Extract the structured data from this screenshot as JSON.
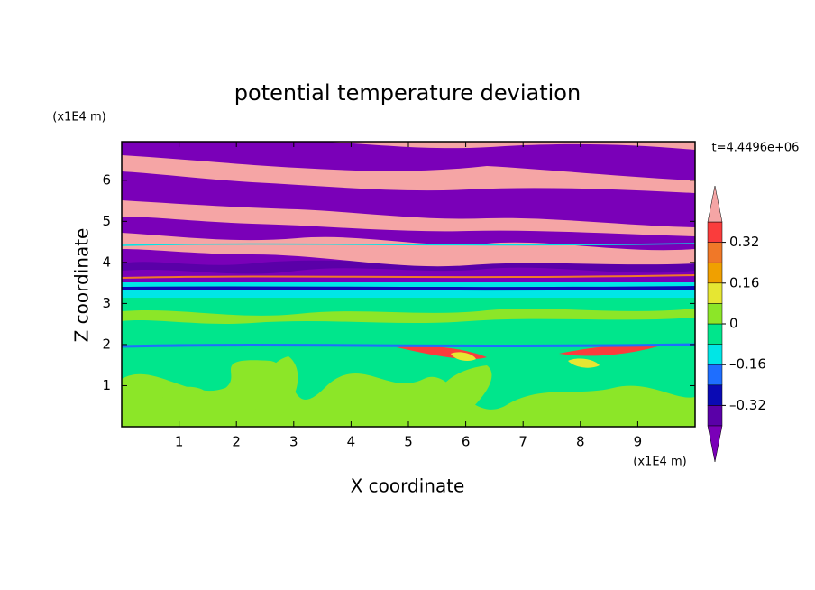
{
  "chart_data": {
    "type": "contour",
    "title": "potential temperature deviation",
    "xlabel": "X coordinate",
    "ylabel": "Z coordinate",
    "x_unit": "(x1E4 m)",
    "y_unit": "(x1E4 m)",
    "annotation": "t=4.4496e+06",
    "xlim": [
      0,
      10
    ],
    "ylim": [
      0,
      6.94
    ],
    "xticks": [
      1,
      2,
      3,
      4,
      5,
      6,
      7,
      8,
      9
    ],
    "yticks": [
      1,
      2,
      3,
      4,
      5,
      6
    ],
    "colorbar": {
      "levels": [
        -0.4,
        -0.32,
        -0.24,
        -0.16,
        -0.08,
        0,
        0.08,
        0.16,
        0.24,
        0.32,
        0.4
      ],
      "colors": [
        "#7a00b8",
        "#5a00a8",
        "#0a0ab4",
        "#1e6eff",
        "#00e6e6",
        "#00e68c",
        "#8ce628",
        "#e6e632",
        "#f0a000",
        "#f07828",
        "#fa3c3c",
        "#f5a5a5"
      ],
      "ticks": [
        {
          "value": -0.32,
          "label": "–0.32"
        },
        {
          "value": -0.16,
          "label": "–0.16"
        },
        0,
        0.16,
        0.32
      ]
    }
  }
}
